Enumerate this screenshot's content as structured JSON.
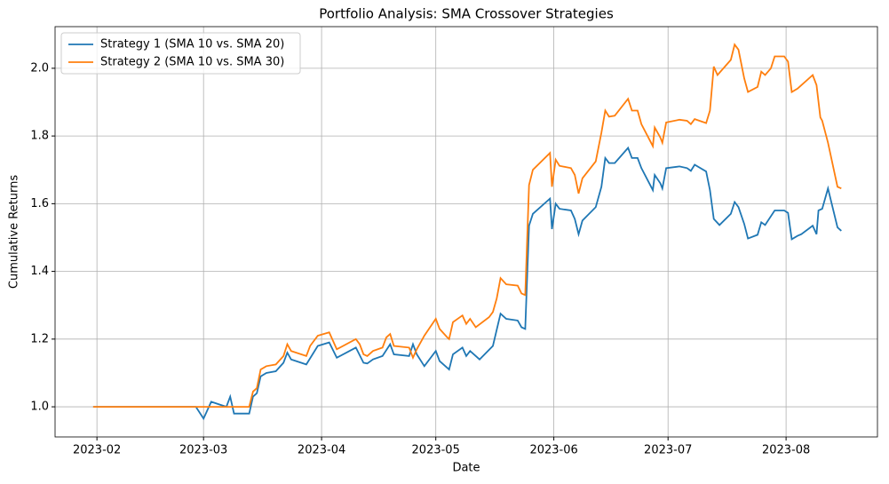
{
  "chart_data": {
    "type": "line",
    "title": "Portfolio Analysis: SMA Crossover Strategies",
    "x_label": "Date",
    "y_label": "Cumulative Returns",
    "xlim": [
      21,
      237
    ],
    "ylim": [
      0.911,
      2.123
    ],
    "grid": true,
    "legend": "upper left",
    "xticks": [
      {
        "value": 32,
        "label": "2023-02"
      },
      {
        "value": 60,
        "label": "2023-03"
      },
      {
        "value": 91,
        "label": "2023-04"
      },
      {
        "value": 121,
        "label": "2023-05"
      },
      {
        "value": 152,
        "label": "2023-06"
      },
      {
        "value": 182,
        "label": "2023-07"
      },
      {
        "value": 213,
        "label": "2023-08"
      }
    ],
    "yticks": [
      {
        "value": 1,
        "label": "1.0"
      },
      {
        "value": 1.2,
        "label": "1.2"
      },
      {
        "value": 1.4,
        "label": "1.4"
      },
      {
        "value": 1.6,
        "label": "1.6"
      },
      {
        "value": 1.8,
        "label": "1.8"
      },
      {
        "value": 2,
        "label": "2.0"
      }
    ],
    "series": [
      {
        "name": "Strategy 1 (SMA 10 vs. SMA 20)",
        "color": "#1f77b4",
        "x": [
          31,
          58,
          60,
          62,
          66,
          67,
          68,
          72,
          73,
          74,
          75,
          76.5,
          79,
          81,
          82,
          83,
          87,
          90,
          93,
          95,
          100,
          102,
          103,
          104.5,
          107,
          109,
          110,
          114,
          115,
          116,
          118,
          121,
          122,
          124,
          124.5,
          125.5,
          128,
          129,
          130,
          132.5,
          136,
          138,
          139.5,
          142.5,
          143.5,
          144.5,
          145.5,
          146.5,
          151,
          151.5,
          152.5,
          153.5,
          156.5,
          157.5,
          158.5,
          159.5,
          163,
          164.5,
          165.5,
          166.5,
          168,
          171.5,
          172.5,
          174,
          175,
          178,
          178.5,
          180,
          180.5,
          181.5,
          185,
          187,
          188,
          189,
          192,
          193,
          194,
          195.5,
          198.5,
          199.5,
          200.5,
          202,
          203,
          205.5,
          206.5,
          207.5,
          210,
          212.5,
          213.5,
          214.5,
          216,
          217,
          220,
          221,
          221.5,
          222.5,
          224,
          226.5,
          227.5
        ],
        "values": [
          1.0,
          1.0,
          0.965,
          1.015,
          1.0,
          1.03,
          0.98,
          0.98,
          1.03,
          1.04,
          1.09,
          1.1,
          1.105,
          1.13,
          1.16,
          1.14,
          1.125,
          1.18,
          1.19,
          1.145,
          1.175,
          1.13,
          1.128,
          1.14,
          1.15,
          1.185,
          1.155,
          1.15,
          1.185,
          1.155,
          1.12,
          1.165,
          1.135,
          1.115,
          1.11,
          1.155,
          1.175,
          1.15,
          1.165,
          1.14,
          1.18,
          1.275,
          1.26,
          1.255,
          1.235,
          1.23,
          1.535,
          1.57,
          1.615,
          1.525,
          1.6,
          1.585,
          1.58,
          1.555,
          1.51,
          1.55,
          1.59,
          1.65,
          1.735,
          1.72,
          1.72,
          1.765,
          1.735,
          1.735,
          1.705,
          1.64,
          1.685,
          1.66,
          1.645,
          1.705,
          1.71,
          1.705,
          1.697,
          1.715,
          1.695,
          1.64,
          1.555,
          1.537,
          1.57,
          1.605,
          1.59,
          1.54,
          1.497,
          1.508,
          1.545,
          1.537,
          1.58,
          1.58,
          1.573,
          1.495,
          1.505,
          1.51,
          1.535,
          1.51,
          1.58,
          1.585,
          1.645,
          1.53,
          1.52
        ]
      },
      {
        "name": "Strategy 2 (SMA 10 vs. SMA 30)",
        "color": "#ff7f0e",
        "x": [
          31,
          72,
          73,
          74,
          75,
          76.5,
          79,
          81,
          82,
          83,
          87,
          88,
          90,
          93,
          95,
          100,
          101,
          102,
          103,
          104.5,
          107,
          108,
          109,
          110,
          114,
          115,
          116,
          118,
          121,
          122,
          124,
          124.5,
          125.5,
          128,
          129,
          130,
          131.5,
          135,
          136,
          137,
          138,
          139.5,
          142.5,
          143.5,
          144.5,
          145.5,
          146.5,
          151,
          151.5,
          152.5,
          153.5,
          156.5,
          157.5,
          158.5,
          159.5,
          163,
          164.5,
          165.5,
          166.5,
          168,
          171.5,
          172.5,
          174,
          175,
          178,
          178.5,
          180,
          180.5,
          181.5,
          185,
          187,
          188,
          189,
          192,
          193,
          194,
          195,
          198.5,
          199.5,
          200.5,
          202,
          203,
          205.5,
          206.5,
          207.5,
          209,
          210,
          212.5,
          213.5,
          214.5,
          216,
          217,
          220,
          221,
          222,
          222.5,
          224,
          226.5,
          227.5
        ],
        "values": [
          1.0,
          1.0,
          1.045,
          1.055,
          1.11,
          1.12,
          1.125,
          1.15,
          1.185,
          1.165,
          1.15,
          1.18,
          1.21,
          1.22,
          1.17,
          1.2,
          1.185,
          1.155,
          1.15,
          1.165,
          1.175,
          1.205,
          1.215,
          1.18,
          1.175,
          1.145,
          1.17,
          1.21,
          1.26,
          1.23,
          1.205,
          1.2,
          1.25,
          1.27,
          1.245,
          1.26,
          1.235,
          1.265,
          1.28,
          1.32,
          1.38,
          1.362,
          1.358,
          1.335,
          1.33,
          1.655,
          1.7,
          1.75,
          1.65,
          1.73,
          1.712,
          1.705,
          1.685,
          1.63,
          1.675,
          1.725,
          1.81,
          1.875,
          1.857,
          1.86,
          1.91,
          1.875,
          1.875,
          1.835,
          1.77,
          1.825,
          1.795,
          1.78,
          1.84,
          1.848,
          1.845,
          1.835,
          1.85,
          1.838,
          1.875,
          2.005,
          1.98,
          2.025,
          2.07,
          2.055,
          1.97,
          1.93,
          1.945,
          1.99,
          1.98,
          2.0,
          2.035,
          2.035,
          2.02,
          1.93,
          1.94,
          1.95,
          1.98,
          1.95,
          1.855,
          1.845,
          1.78,
          1.65,
          1.645
        ]
      }
    ]
  }
}
